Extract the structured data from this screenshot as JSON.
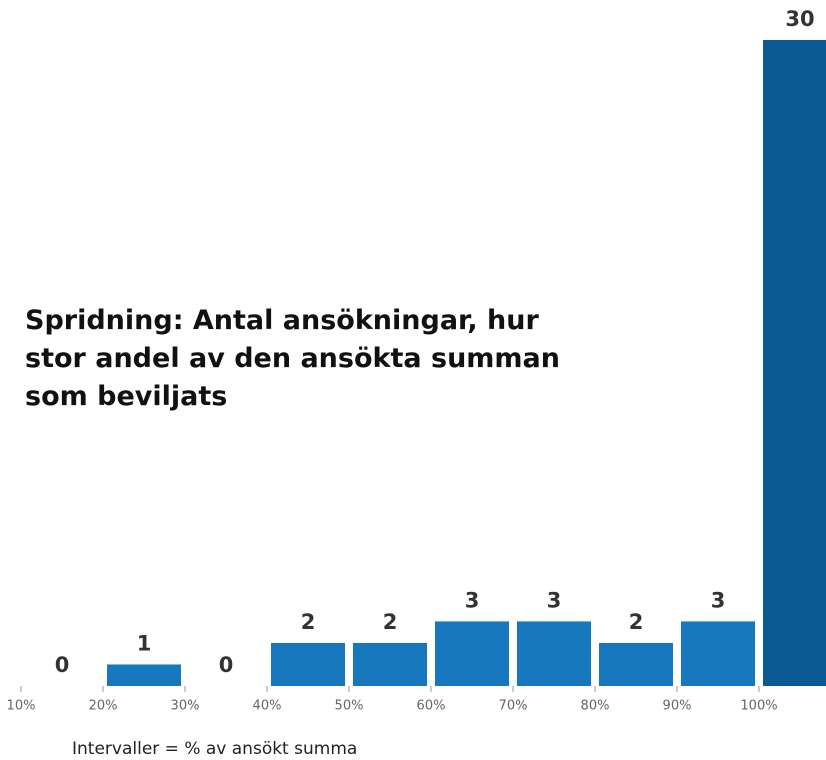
{
  "chart_data": {
    "type": "bar",
    "title": "Spridning: Antal ansökningar, hur stor andel av den ansökta summan som beviljats",
    "x_label": "Intervaller = % av ansökt summa",
    "categories": [
      "10%",
      "20%",
      "30%",
      "40%",
      "50%",
      "60%",
      "70%",
      "80%",
      "90%",
      "100%"
    ],
    "values": [
      0,
      1,
      0,
      2,
      2,
      3,
      3,
      2,
      3,
      30
    ],
    "colors": [
      "#1778bd",
      "#1778bd",
      "#1778bd",
      "#1778bd",
      "#1778bd",
      "#1778bd",
      "#1778bd",
      "#1778bd",
      "#1778bd",
      "#0b5993"
    ]
  }
}
